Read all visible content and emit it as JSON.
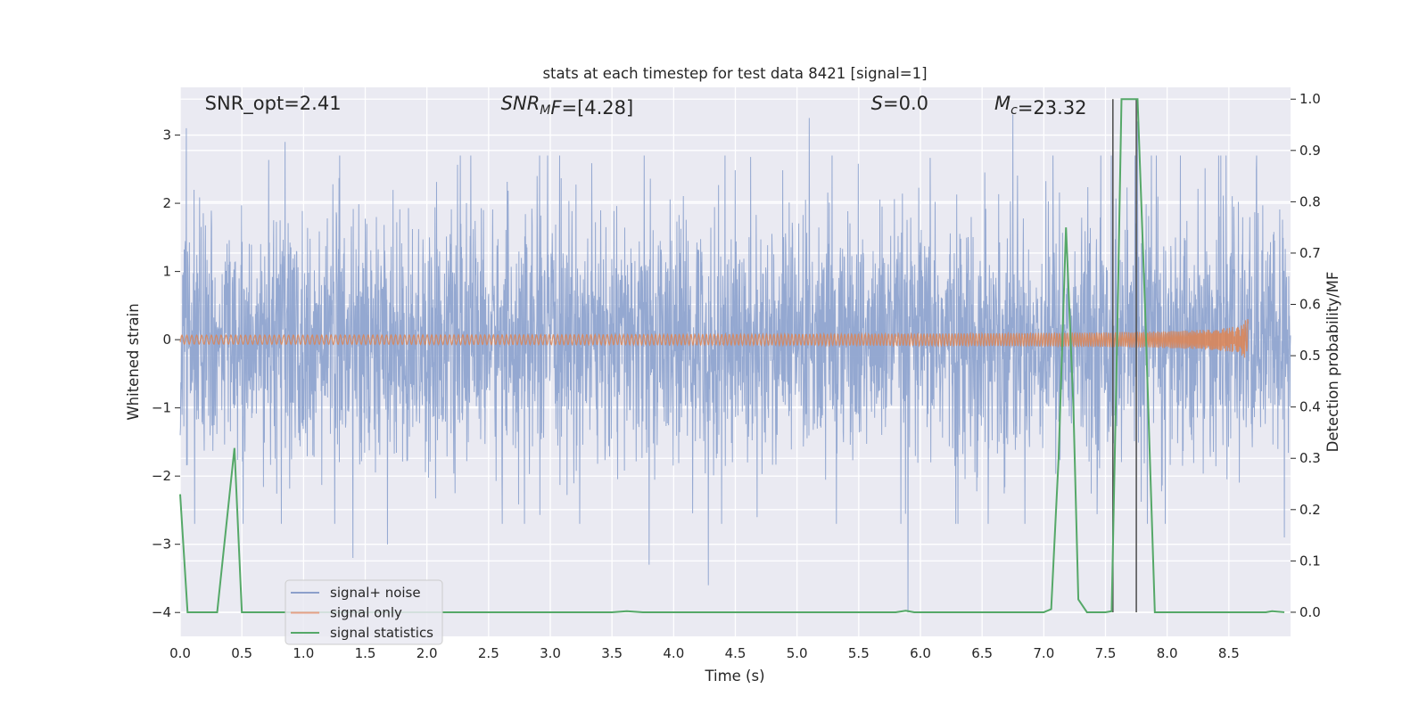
{
  "chart_data": {
    "type": "line",
    "title": "stats at each timestep for test data 8421 [signal=1]",
    "xlabel": "Time (s)",
    "ylabel_left": "Whitened strain",
    "ylabel_right": "Detection probability/MF",
    "xlim": [
      0.0,
      9.0
    ],
    "ylim_left": [
      -4.35,
      3.7
    ],
    "ylim_right": [
      -0.047,
      1.023
    ],
    "x_ticks": [
      0.0,
      0.5,
      1.0,
      1.5,
      2.0,
      2.5,
      3.0,
      3.5,
      4.0,
      4.5,
      5.0,
      5.5,
      6.0,
      6.5,
      7.0,
      7.5,
      8.0,
      8.5
    ],
    "x_tick_labels": [
      "0.0",
      "0.5",
      "1.0",
      "1.5",
      "2.0",
      "2.5",
      "3.0",
      "3.5",
      "4.0",
      "4.5",
      "5.0",
      "5.5",
      "6.0",
      "6.5",
      "7.0",
      "7.5",
      "8.0",
      "8.5"
    ],
    "y_left_ticks": [
      -4,
      -3,
      -2,
      -1,
      0,
      1,
      2,
      3
    ],
    "y_left_tick_labels": [
      "−4",
      "−3",
      "−2",
      "−1",
      "0",
      "1",
      "2",
      "3"
    ],
    "y_right_ticks": [
      0.0,
      0.1,
      0.2,
      0.3,
      0.4,
      0.5,
      0.6,
      0.7,
      0.8,
      0.9,
      1.0
    ],
    "y_right_tick_labels": [
      "0.0",
      "0.1",
      "0.2",
      "0.3",
      "0.4",
      "0.5",
      "0.6",
      "0.7",
      "0.8",
      "0.9",
      "1.0"
    ],
    "annotations": [
      {
        "name": "snr-opt",
        "parts": [
          {
            "text": "SNR_opt=2.41",
            "italic": false
          }
        ],
        "x": 0.2
      },
      {
        "name": "snr-mf",
        "parts": [
          {
            "text": "SNR",
            "italic": true
          },
          {
            "text": "M",
            "italic": true,
            "sub": true
          },
          {
            "text": "F",
            "italic": true
          },
          {
            "text": "=[4.28]",
            "italic": false
          }
        ],
        "x": 2.6
      },
      {
        "name": "s-value",
        "parts": [
          {
            "text": "S",
            "italic": true
          },
          {
            "text": "=0.0",
            "italic": false
          }
        ],
        "x": 5.6
      },
      {
        "name": "chirp-mass",
        "parts": [
          {
            "text": "M",
            "italic": true
          },
          {
            "text": "c",
            "italic": true,
            "sub": true
          },
          {
            "text": "=23.32",
            "italic": false
          }
        ],
        "x": 6.6
      }
    ],
    "legend": {
      "placement": "lower-left",
      "entries": [
        {
          "label": "signal+ noise",
          "color": "#8da0cb"
        },
        {
          "label": "signal only",
          "color": "#e5a186"
        },
        {
          "label": "signal statistics",
          "color": "#55a868"
        }
      ]
    },
    "series": [
      {
        "name": "signal+ noise",
        "axis": "left",
        "color": "#8fa4cf",
        "kind": "noise",
        "x_range": [
          0.0,
          9.0
        ],
        "typical_envelope": [
          -1.1,
          1.1
        ],
        "notable_spikes": [
          {
            "x": 0.05,
            "y": 3.1
          },
          {
            "x": 0.85,
            "y": 2.9
          },
          {
            "x": 1.4,
            "y": -3.2
          },
          {
            "x": 1.68,
            "y": -3.0
          },
          {
            "x": 3.8,
            "y": -3.3
          },
          {
            "x": 4.28,
            "y": -3.6
          },
          {
            "x": 5.1,
            "y": 3.25
          },
          {
            "x": 5.9,
            "y": -4.0
          },
          {
            "x": 6.75,
            "y": 3.3
          },
          {
            "x": 7.76,
            "y": 3.2
          },
          {
            "x": 8.95,
            "y": -2.9
          }
        ]
      },
      {
        "name": "signal only",
        "axis": "left",
        "color": "#dd8452",
        "kind": "chirp",
        "x_range": [
          0.0,
          8.66
        ],
        "peak_amplitude": 0.5,
        "merger_time": 8.66
      },
      {
        "name": "signal statistics",
        "axis": "right",
        "color": "#55a868",
        "x": [
          0.0,
          0.06,
          0.3,
          0.44,
          0.5,
          3.5,
          3.62,
          3.75,
          5.8,
          5.88,
          5.95,
          7.0,
          7.06,
          7.12,
          7.18,
          7.24,
          7.28,
          7.35,
          7.5,
          7.55,
          7.6,
          7.63,
          7.76,
          7.82,
          7.9,
          8.5,
          8.8,
          8.85,
          8.95
        ],
        "values": [
          0.23,
          0.0,
          0.0,
          0.32,
          0.0,
          0.0,
          0.002,
          0.0,
          0.0,
          0.003,
          0.0,
          0.0,
          0.006,
          0.3,
          0.75,
          0.4,
          0.025,
          0.0,
          0.0,
          0.002,
          0.6,
          1.0,
          1.0,
          0.6,
          0.0,
          0.0,
          0.0,
          0.002,
          0.0
        ]
      }
    ],
    "vertical_lines": [
      {
        "x": 7.56,
        "y_from": 0.0,
        "y_to": 1.0,
        "color": "#555555"
      },
      {
        "x": 7.75,
        "y_from": 0.0,
        "y_to": 1.0,
        "color": "#555555"
      }
    ]
  }
}
